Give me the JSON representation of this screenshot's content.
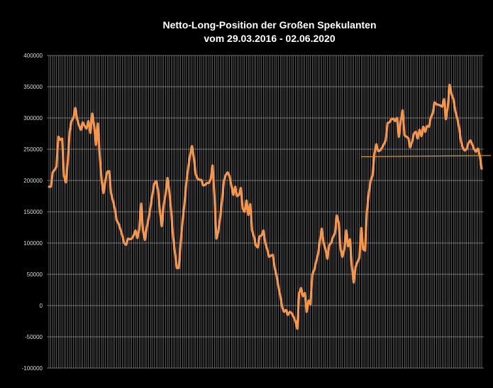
{
  "chart_data": {
    "type": "line",
    "title": "Netto-Long-Position der  Großen Spekulanten",
    "subtitle": "vom 29.03.2016 - 02.06.2020",
    "xlabel": "",
    "ylabel": "",
    "ylim": [
      -100000,
      400000
    ],
    "yticks": [
      400000,
      350000,
      300000,
      250000,
      200000,
      150000,
      100000,
      50000,
      0,
      -50000,
      -100000
    ],
    "grid": true,
    "legend": "none",
    "colors": {
      "series": "#f79646",
      "trendline": "#d4a017",
      "grid": "#ffffff",
      "background": "#000000"
    },
    "x_start": "29.03.2016",
    "x_end": "02.06.2020",
    "series": [
      {
        "values": [
          190000,
          190000,
          213000,
          217000,
          222000,
          270000,
          265000,
          267000,
          207000,
          197000,
          230000,
          278000,
          295000,
          300000,
          316000,
          298000,
          288000,
          281000,
          293000,
          287000,
          283000,
          295000,
          276000,
          307000,
          288000,
          257000,
          291000,
          240000,
          200000,
          180000,
          200000,
          214000,
          215000,
          180000,
          168000,
          155000,
          136000,
          131000,
          122000,
          112000,
          100000,
          97000,
          107000,
          106000,
          107000,
          112000,
          120000,
          108000,
          122000,
          163000,
          120000,
          105000,
          125000,
          140000,
          158000,
          178000,
          195000,
          199000,
          185000,
          150000,
          127000,
          161000,
          178000,
          204000,
          183000,
          150000,
          110000,
          84000,
          60000,
          60000,
          100000,
          135000,
          162000,
          195000,
          220000,
          240000,
          255000,
          237000,
          210000,
          203000,
          201000,
          201000,
          192000,
          193000,
          196000,
          196000,
          202000,
          224000,
          175000,
          107000,
          118000,
          140000,
          168000,
          200000,
          209000,
          213000,
          207000,
          191000,
          177000,
          190000,
          175000,
          177000,
          188000,
          155000,
          150000,
          168000,
          145000,
          162000,
          120000,
          110000,
          96000,
          93000,
          111000,
          112000,
          120000,
          100000,
          90000,
          78000,
          80000,
          81000,
          60000,
          48000,
          30000,
          15000,
          -3000,
          -10000,
          -7000,
          -15000,
          -10000,
          -12000,
          -18000,
          -25000,
          -37000,
          20000,
          28000,
          15000,
          20000,
          -10000,
          8000,
          2000,
          50000,
          57000,
          70000,
          82000,
          103000,
          123000,
          100000,
          90000,
          75000,
          97000,
          100000,
          110000,
          115000,
          144000,
          133000,
          90000,
          78000,
          90000,
          120000,
          95000,
          106000,
          63000,
          37000,
          62000,
          70000,
          76000,
          124000,
          90000,
          88000,
          150000,
          180000,
          200000,
          208000,
          243000,
          258000,
          247000,
          248000,
          252000,
          258000,
          264000,
          292000,
          293000,
          298000,
          299000,
          295000,
          300000,
          270000,
          296000,
          312000,
          272000,
          270000,
          268000,
          253000,
          262000,
          275000,
          278000,
          267000,
          281000,
          271000,
          286000,
          278000,
          287000,
          286000,
          301000,
          307000,
          325000,
          322000,
          321000,
          320000,
          318000,
          330000,
          298000,
          318000,
          353000,
          338000,
          330000,
          311000,
          300000,
          285000,
          263000,
          252000,
          248000,
          250000,
          260000,
          264000,
          258000,
          250000,
          246000,
          251000,
          240000,
          219000
        ]
      }
    ],
    "trendline": {
      "x0_frac": 0.72,
      "y0": 238000,
      "x1_frac": 1.0,
      "y1": 240000
    }
  }
}
